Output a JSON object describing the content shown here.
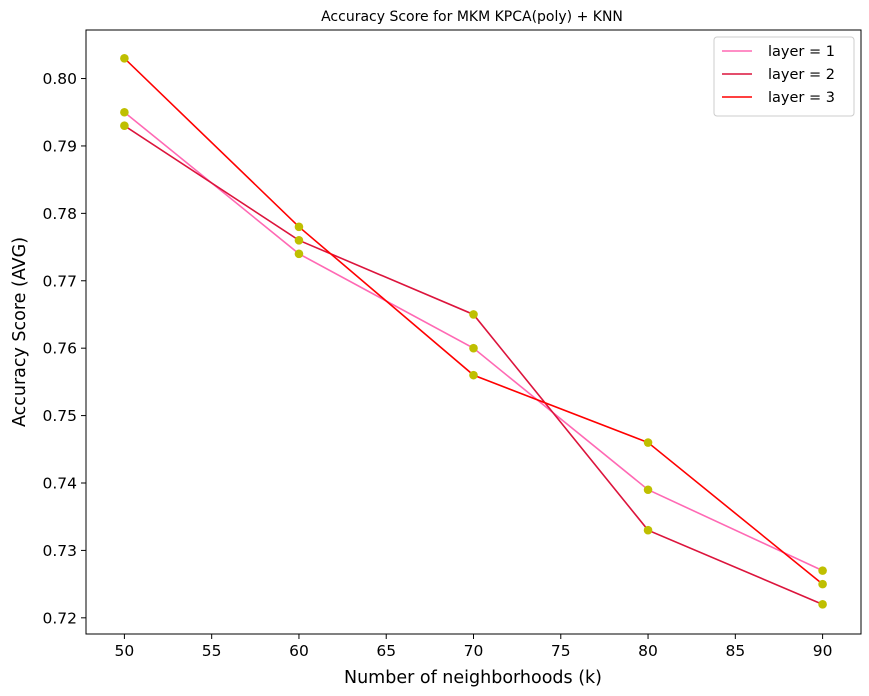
{
  "chart_data": {
    "type": "line",
    "title": "Accuracy Score for MKM KPCA(poly) + KNN",
    "xlabel": "Number of neighborhoods (k)",
    "ylabel": "Accuracy Score (AVG)",
    "x": [
      50,
      60,
      70,
      80,
      90
    ],
    "xlim": [
      47.8,
      92.2
    ],
    "ylim": [
      0.7176,
      0.8072
    ],
    "xticks": [
      "50",
      "55",
      "60",
      "65",
      "70",
      "75",
      "80",
      "85",
      "90"
    ],
    "yticks": [
      "0.72",
      "0.73",
      "0.74",
      "0.75",
      "0.76",
      "0.77",
      "0.78",
      "0.79",
      "0.80"
    ],
    "grid": false,
    "legend_position": "top-right",
    "marker_color": "#bfbf00",
    "series": [
      {
        "name": "layer = 1",
        "color": "#ff69b4",
        "values": [
          0.795,
          0.774,
          0.76,
          0.739,
          0.727
        ]
      },
      {
        "name": "layer = 2",
        "color": "#dc143c",
        "values": [
          0.793,
          0.776,
          0.765,
          0.733,
          0.722
        ]
      },
      {
        "name": "layer = 3",
        "color": "#ff0000",
        "values": [
          0.803,
          0.778,
          0.756,
          0.746,
          0.725
        ]
      }
    ]
  }
}
